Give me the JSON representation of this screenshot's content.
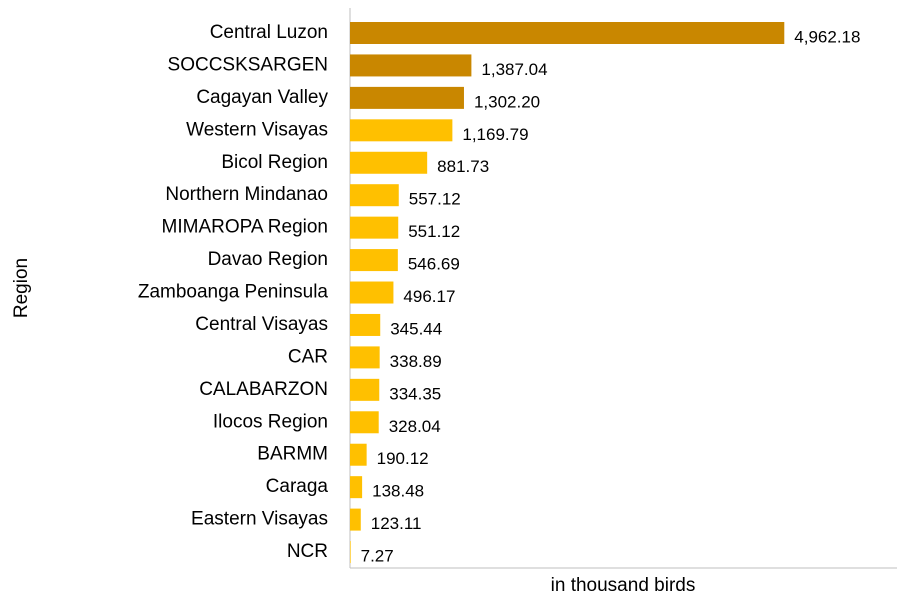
{
  "chart_data": {
    "type": "bar",
    "orientation": "horizontal",
    "x_label": "in thousand birds",
    "y_label": "Region",
    "categories": [
      "Central Luzon",
      "SOCCSKSARGEN",
      "Cagayan Valley",
      "Western Visayas",
      "Bicol Region",
      "Northern Mindanao",
      "MIMAROPA Region",
      "Davao Region",
      "Zamboanga Peninsula",
      "Central Visayas",
      "CAR",
      "CALABARZON",
      "Ilocos Region",
      "BARMM",
      "Caraga",
      "Eastern Visayas",
      "NCR"
    ],
    "values": [
      4962.18,
      1387.04,
      1302.2,
      1169.79,
      881.73,
      557.12,
      551.12,
      546.69,
      496.17,
      345.44,
      338.89,
      334.35,
      328.04,
      190.12,
      138.48,
      123.11,
      7.27
    ],
    "value_labels": [
      "4,962.18",
      "1,387.04",
      "1,302.20",
      "1,169.79",
      "881.73",
      "557.12",
      "551.12",
      "546.69",
      "496.17",
      "345.44",
      "338.89",
      "334.35",
      "328.04",
      "190.12",
      "138.48",
      "123.11",
      "7.27"
    ],
    "colors": [
      "#c98700",
      "#c98700",
      "#c98700",
      "#ffc000",
      "#ffc000",
      "#ffc000",
      "#ffc000",
      "#ffc000",
      "#ffc000",
      "#ffc000",
      "#ffc000",
      "#ffc000",
      "#ffc000",
      "#ffc000",
      "#ffc000",
      "#ffc000",
      "#ffc000"
    ],
    "xlim": [
      0,
      6250
    ]
  }
}
